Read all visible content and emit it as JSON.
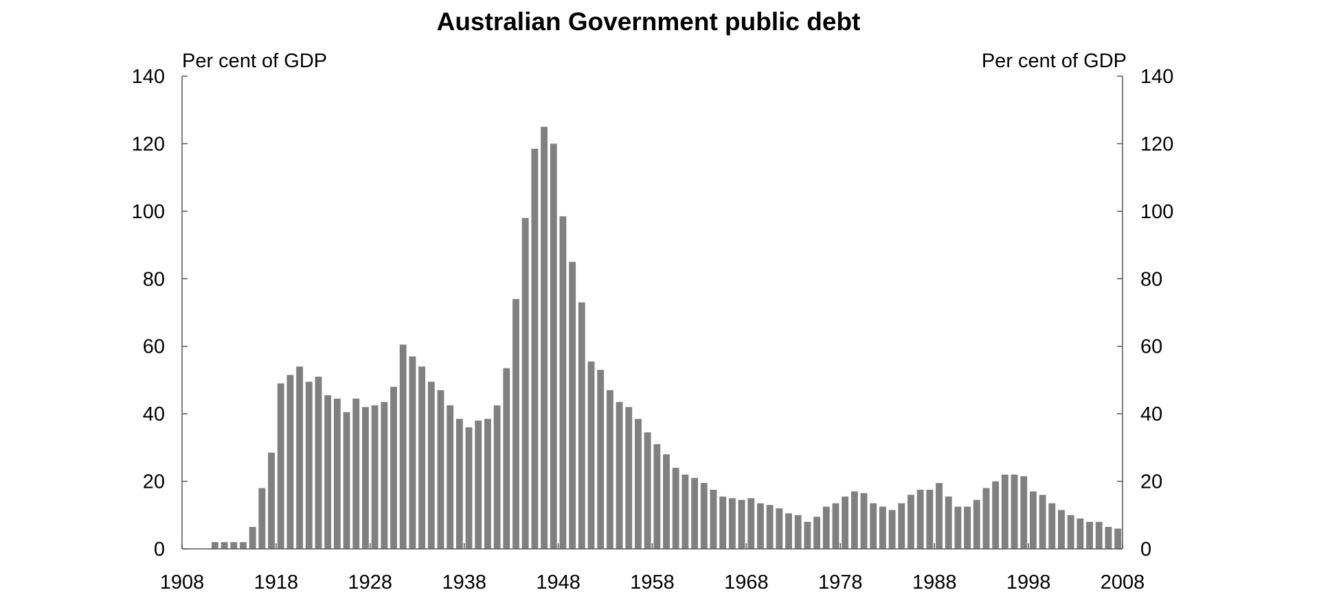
{
  "chart_data": {
    "type": "bar",
    "title": "Australian Government public debt",
    "ylabel_left": "Per cent of GDP",
    "ylabel_right": "Per cent of GDP",
    "xlabel": "",
    "ylim": [
      0,
      140
    ],
    "xlim": [
      1908,
      2008
    ],
    "yticks": [
      0,
      20,
      40,
      60,
      80,
      100,
      120,
      140
    ],
    "xticks": [
      1908,
      1918,
      1928,
      1938,
      1948,
      1958,
      1968,
      1978,
      1988,
      1998,
      2008
    ],
    "grid": false,
    "legend": "none",
    "bar_color": "#808080",
    "x": [
      1911,
      1912,
      1913,
      1914,
      1915,
      1916,
      1917,
      1918,
      1919,
      1920,
      1921,
      1922,
      1923,
      1924,
      1925,
      1926,
      1927,
      1928,
      1929,
      1930,
      1931,
      1932,
      1933,
      1934,
      1935,
      1936,
      1937,
      1938,
      1939,
      1940,
      1941,
      1942,
      1943,
      1944,
      1945,
      1946,
      1947,
      1948,
      1949,
      1950,
      1951,
      1952,
      1953,
      1954,
      1955,
      1956,
      1957,
      1958,
      1959,
      1960,
      1961,
      1962,
      1963,
      1964,
      1965,
      1966,
      1967,
      1968,
      1969,
      1970,
      1971,
      1972,
      1973,
      1974,
      1975,
      1976,
      1977,
      1978,
      1979,
      1980,
      1981,
      1982,
      1983,
      1984,
      1985,
      1986,
      1987,
      1988,
      1989,
      1990,
      1991,
      1992,
      1993,
      1994,
      1995,
      1996,
      1997,
      1998,
      1999,
      2000,
      2001,
      2002,
      2003,
      2004,
      2005,
      2006,
      2007
    ],
    "values": [
      2,
      2,
      2,
      2,
      6.5,
      18,
      28.5,
      49,
      51.5,
      54,
      49.5,
      51,
      45.5,
      44.5,
      40.5,
      44.5,
      42,
      42.5,
      43.5,
      48,
      60.5,
      57,
      54,
      49.5,
      47,
      42.5,
      38.5,
      36,
      38,
      38.5,
      42.5,
      53.5,
      74,
      98,
      118.5,
      125,
      120,
      98.5,
      85,
      73,
      55.5,
      53,
      47,
      43.5,
      42,
      38.5,
      34.5,
      31,
      28,
      24,
      22,
      21,
      19.5,
      17.5,
      15.5,
      15,
      14.5,
      15,
      13.5,
      13,
      12,
      10.5,
      10,
      8,
      9.5,
      12.5,
      13.5,
      15.5,
      17,
      16.5,
      13.5,
      12.5,
      11.5,
      13.5,
      16,
      17.5,
      17.5,
      19.5,
      15.5,
      12.5,
      12.5,
      14.5,
      18,
      20,
      22,
      22,
      21.5,
      17,
      16,
      13.5,
      11.5,
      10,
      9,
      8,
      8,
      6.5,
      6
    ]
  }
}
